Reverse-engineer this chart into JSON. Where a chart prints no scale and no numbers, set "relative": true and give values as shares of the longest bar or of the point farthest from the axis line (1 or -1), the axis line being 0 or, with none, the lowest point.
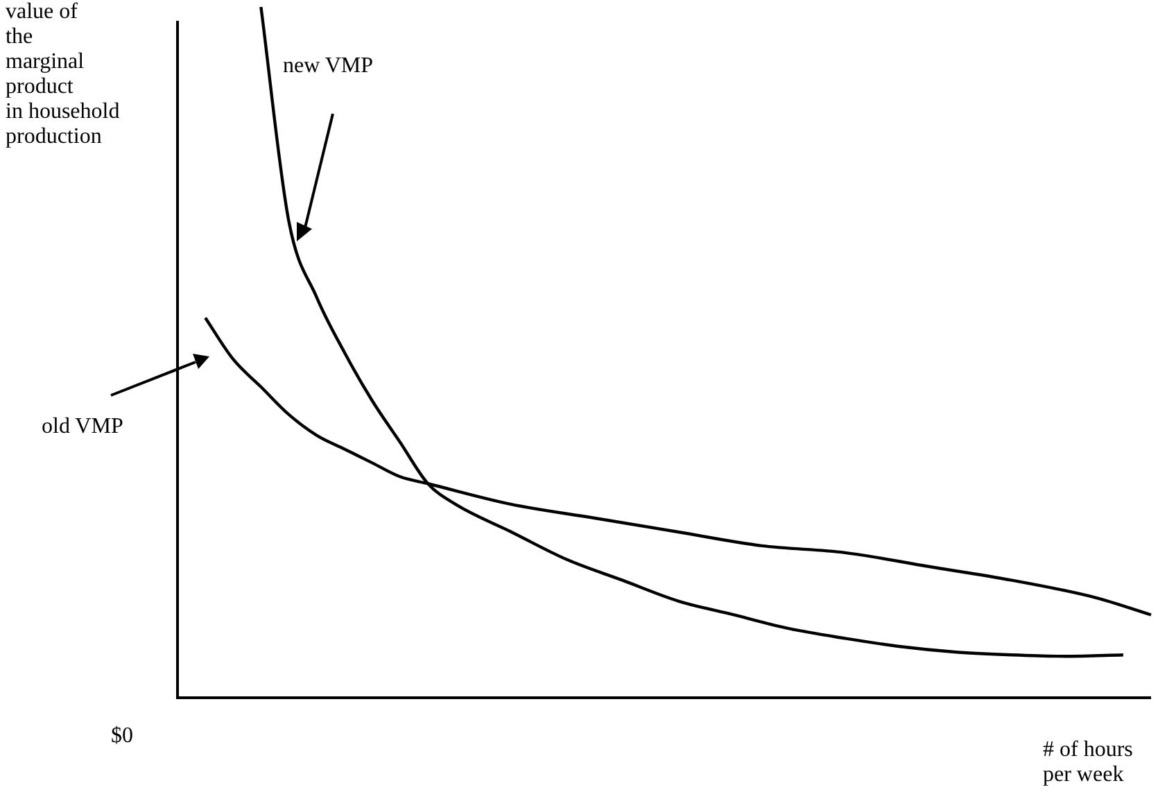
{
  "chart_data": {
    "type": "line",
    "relative": true,
    "ylabel": "value of\nthe\nmarginal\nproduct\nin household\nproduction",
    "xlabel": "# of hours\nper week",
    "annotations": [
      "$0"
    ],
    "marker": "none",
    "categories": [
      null,
      null,
      null,
      null,
      null,
      null,
      null,
      null,
      null,
      null,
      null,
      null,
      null,
      null,
      null,
      null,
      null,
      null,
      null,
      null,
      null,
      null,
      null,
      null,
      null,
      null,
      null,
      null,
      null,
      null,
      null,
      null,
      null,
      null,
      null,
      null
    ],
    "series": [
      {
        "name": "new VMP",
        "color": "#000000",
        "values": [
          null,
          null,
          null,
          1.0,
          0.69,
          0.58,
          0.5,
          0.43,
          0.37,
          0.31,
          0.28,
          null,
          0.24,
          null,
          0.2,
          null,
          0.17,
          null,
          0.14,
          null,
          0.12,
          null,
          0.1,
          null,
          0.086,
          null,
          0.074,
          null,
          0.066,
          null,
          0.062,
          null,
          0.06,
          null,
          0.062,
          null
        ]
      },
      {
        "name": "old VMP",
        "color": "#000000",
        "values": [
          null,
          0.55,
          0.49,
          0.45,
          0.41,
          0.38,
          0.36,
          0.34,
          0.32,
          0.31,
          null,
          null,
          0.28,
          null,
          null,
          0.26,
          null,
          null,
          0.24,
          null,
          null,
          0.22,
          null,
          null,
          0.21,
          null,
          null,
          0.19,
          null,
          null,
          0.17,
          null,
          null,
          0.145,
          null,
          0.12
        ]
      }
    ]
  }
}
